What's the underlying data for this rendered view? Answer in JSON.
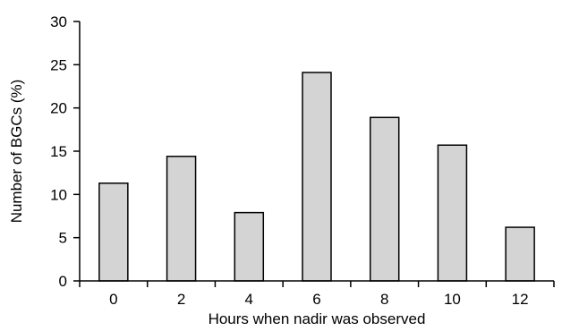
{
  "chart_data": {
    "type": "bar",
    "categories": [
      "0",
      "2",
      "4",
      "6",
      "8",
      "10",
      "12"
    ],
    "values": [
      11.3,
      14.4,
      7.9,
      24.1,
      18.9,
      15.7,
      6.2
    ],
    "xlabel": "Hours when nadir was observed",
    "ylabel": "Number of BGCs (%)",
    "ylim": [
      0,
      30
    ],
    "yticks": [
      0,
      5,
      10,
      15,
      20,
      25,
      30
    ],
    "grid": false,
    "legend": "none",
    "bar_color": "#d4d4d4",
    "edge_color": "#000000"
  }
}
